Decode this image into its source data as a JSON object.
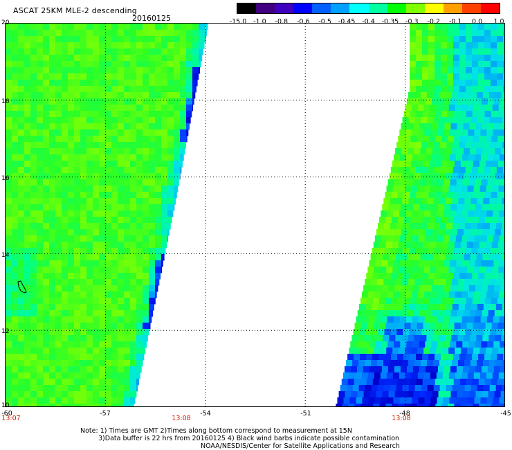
{
  "header": {
    "title": "ASCAT 25KM MLE-2 descending",
    "date": "20160125"
  },
  "colorbar": {
    "labels": [
      "-15.0",
      "-1.0",
      "-0.8",
      "-0.6",
      "-0.5",
      "-0.45",
      "-0.4",
      "-0.35",
      "-0.3",
      "-0.2",
      "-0.1",
      "0.0",
      "1.0"
    ],
    "colors": [
      "#000000",
      "#400080",
      "#4000c0",
      "#0000ff",
      "#0060ff",
      "#00a0ff",
      "#00ffff",
      "#00ffa0",
      "#00ff00",
      "#80ff00",
      "#ffff00",
      "#ffa000",
      "#ff4000",
      "#ff0000"
    ]
  },
  "map": {
    "lat_labels": [
      "20",
      "18",
      "16",
      "14",
      "12",
      "10"
    ],
    "lon_labels": [
      "-60",
      "-57",
      "-54",
      "-51",
      "-48",
      "-45"
    ],
    "swath_times": [
      "13:07",
      "13:08",
      "13:08"
    ],
    "island": "barbados-outline"
  },
  "footer": {
    "note1": "Note: 1) Times are GMT 2)Times along bottom correspond to measurement at 15N",
    "note2": "3)Data buffer is 22 hrs from 20160125 4) Black wind barbs indicate possible contamination",
    "credit": "NOAA/NESDIS/Center for Satellite Applications and Research"
  }
}
